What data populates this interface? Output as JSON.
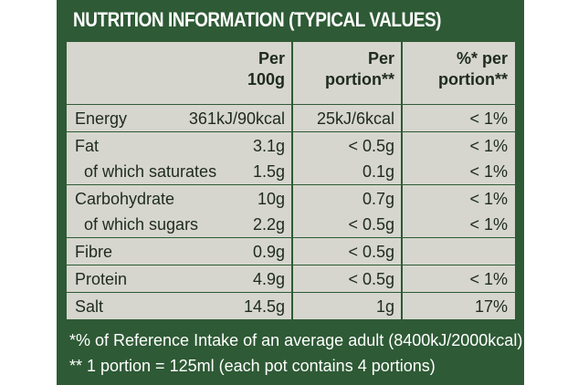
{
  "title": "NUTRITION INFORMATION (TYPICAL VALUES)",
  "table": {
    "headers": [
      [
        "Per",
        "100g"
      ],
      [
        "Per",
        "portion**"
      ],
      [
        "%* per",
        "portion**"
      ]
    ],
    "groups": [
      [
        {
          "label": "Energy",
          "per_100g": "361kJ/90kcal",
          "per_portion": "25kJ/6kcal",
          "ri": "< 1%"
        }
      ],
      [
        {
          "label": "Fat",
          "per_100g": "3.1g",
          "per_portion": "< 0.5g",
          "ri": "< 1%"
        },
        {
          "label": "of which saturates",
          "per_100g": "1.5g",
          "per_portion": "0.1g",
          "ri": "< 1%"
        }
      ],
      [
        {
          "label": "Carbohydrate",
          "per_100g": "10g",
          "per_portion": "0.7g",
          "ri": "< 1%"
        },
        {
          "label": "of which sugars",
          "per_100g": "2.2g",
          "per_portion": "< 0.5g",
          "ri": "< 1%"
        }
      ],
      [
        {
          "label": "Fibre",
          "per_100g": "0.9g",
          "per_portion": "< 0.5g"
        }
      ],
      [
        {
          "label": "Protein",
          "per_100g": "4.9g",
          "per_portion": "< 0.5g",
          "ri": "< 1%"
        }
      ],
      [
        {
          "label": "Salt",
          "per_100g": "14.5g",
          "per_portion": "1g",
          "ri": "17%"
        }
      ]
    ]
  },
  "footnotes": [
    "*% of Reference Intake of an average adult (8400kJ/2000kcal)",
    "** 1 portion = 125ml (each pot contains 4 portions)"
  ]
}
